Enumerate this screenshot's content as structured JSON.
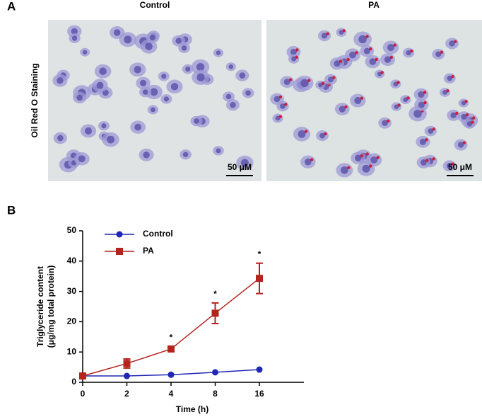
{
  "panel_a": {
    "label": "A",
    "columns": [
      "Control",
      "PA"
    ],
    "row_label": "Oil Red O Staining",
    "scale_bars": [
      "50 μM",
      "50 μM"
    ]
  },
  "chart_data": {
    "type": "line",
    "panel_label": "B",
    "xlabel": "Time (h)",
    "ylabel": [
      "Triglyceride content",
      "(μg/mg total protein)"
    ],
    "categories": [
      "0",
      "2",
      "4",
      "8",
      "16"
    ],
    "series": [
      {
        "name": "Control",
        "color": "#1f27b4",
        "marker": "circle",
        "values": [
          2.1,
          2.1,
          2.5,
          3.3,
          4.2
        ]
      },
      {
        "name": "PA",
        "color": "#b2241c",
        "marker": "square",
        "values": [
          2.1,
          6.2,
          11.0,
          22.8,
          34.3
        ],
        "errors": [
          0.3,
          1.5,
          0.8,
          3.4,
          5.0
        ]
      }
    ],
    "significance": [
      null,
      null,
      "*",
      "*",
      "*"
    ],
    "ylim": [
      0,
      50
    ],
    "yticks": [
      0,
      10,
      20,
      30,
      40,
      50
    ],
    "legend": "upper left"
  }
}
